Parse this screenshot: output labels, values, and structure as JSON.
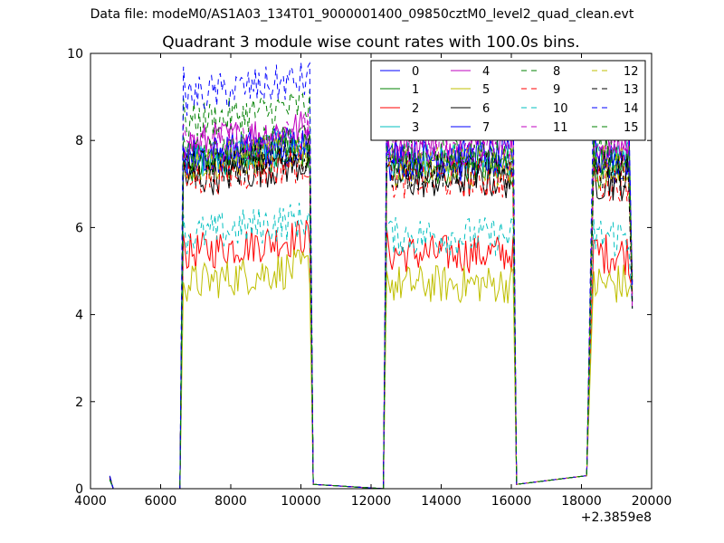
{
  "figure": {
    "suptitle": "Data file: modeM0/AS1A03_134T01_9000001400_09850cztM0_level2_quad_clean.evt"
  },
  "chart_data": {
    "type": "line",
    "title": "Quadrant 3 module wise count rates with 100.0s bins.",
    "xlabel": "",
    "ylabel": "",
    "xlim": [
      4000,
      20000
    ],
    "ylim": [
      0,
      10
    ],
    "x_offset_label": "+2.3859e8",
    "x_ticks": [
      4000,
      6000,
      8000,
      10000,
      12000,
      14000,
      16000,
      18000,
      20000
    ],
    "x_tick_labels": [
      "4000",
      "6000",
      "8000",
      "10000",
      "12000",
      "14000",
      "16000",
      "18000",
      "20000"
    ],
    "y_ticks": [
      0,
      2,
      4,
      6,
      8,
      10
    ],
    "y_tick_labels": [
      "0",
      "2",
      "4",
      "6",
      "8",
      "10"
    ],
    "grid": false,
    "legend": {
      "placement": "top-right",
      "columns": 4
    },
    "segments": [
      {
        "start": 4550,
        "end": 4650
      },
      {
        "start": 6550,
        "end": 10450
      },
      {
        "start": 12350,
        "end": 16250
      },
      {
        "start": 18150,
        "end": 19450
      }
    ],
    "series": [
      {
        "name": "0",
        "color": "#0000ff",
        "style": "solid",
        "level": 7.5,
        "edge": 8.0
      },
      {
        "name": "1",
        "color": "#008000",
        "style": "solid",
        "level": 7.4,
        "edge": 7.8
      },
      {
        "name": "2",
        "color": "#ff0000",
        "style": "solid",
        "level": 5.4,
        "edge": 5.7
      },
      {
        "name": "3",
        "color": "#00bfbf",
        "style": "solid",
        "level": 7.5,
        "edge": 7.9
      },
      {
        "name": "4",
        "color": "#bf00bf",
        "style": "solid",
        "level": 7.9,
        "edge": 8.2
      },
      {
        "name": "5",
        "color": "#bfbf00",
        "style": "solid",
        "level": 4.7,
        "edge": 5.0
      },
      {
        "name": "6",
        "color": "#000000",
        "style": "solid",
        "level": 7.1,
        "edge": 7.5
      },
      {
        "name": "7",
        "color": "#0000ff",
        "style": "solid",
        "level": 7.6,
        "edge": 8.0
      },
      {
        "name": "8",
        "color": "#008000",
        "style": "dashed",
        "level": 8.4,
        "edge": 8.6
      },
      {
        "name": "9",
        "color": "#ff0000",
        "style": "dashed",
        "level": 7.1,
        "edge": 7.4
      },
      {
        "name": "10",
        "color": "#00bfbf",
        "style": "dashed",
        "level": 5.8,
        "edge": 6.0
      },
      {
        "name": "11",
        "color": "#bf00bf",
        "style": "dashed",
        "level": 7.8,
        "edge": 8.1
      },
      {
        "name": "12",
        "color": "#bfbf00",
        "style": "dashed",
        "level": 7.4,
        "edge": 7.7
      },
      {
        "name": "13",
        "color": "#000000",
        "style": "dashed",
        "level": 7.3,
        "edge": 7.6
      },
      {
        "name": "14",
        "color": "#0000ff",
        "style": "dashed",
        "level": 9.0,
        "edge": 9.3
      },
      {
        "name": "15",
        "color": "#008000",
        "style": "dashed",
        "level": 7.6,
        "edge": 7.9
      }
    ]
  }
}
